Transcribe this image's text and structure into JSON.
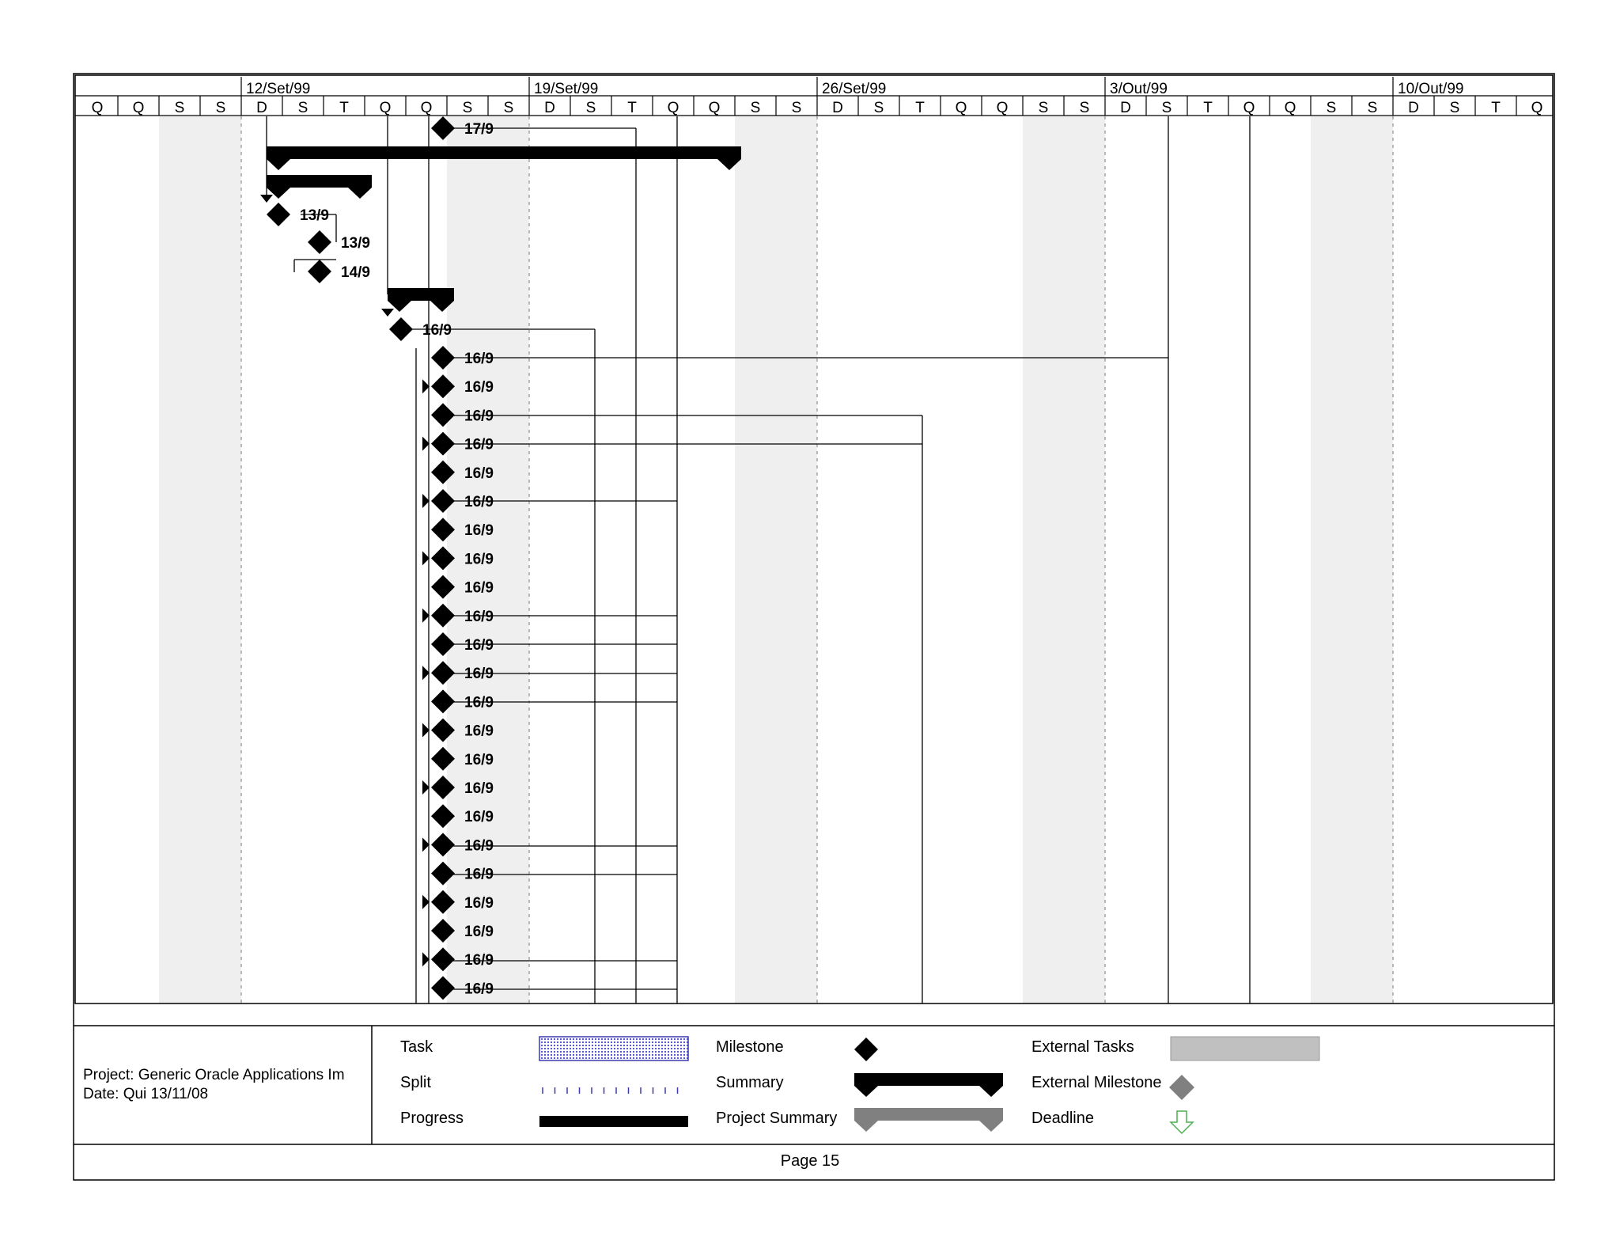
{
  "timescale": {
    "weeks": [
      "12/Set/99",
      "19/Set/99",
      "26/Set/99",
      "3/Out/99",
      "10/Out/99"
    ],
    "days": [
      "Q",
      "Q",
      "S",
      "S",
      "D",
      "S",
      "T",
      "Q",
      "Q",
      "S",
      "S",
      "D",
      "S",
      "T",
      "Q",
      "Q",
      "S",
      "S",
      "D",
      "S",
      "T",
      "Q",
      "Q",
      "S",
      "S",
      "D",
      "S",
      "T",
      "Q",
      "Q",
      "S",
      "S",
      "D",
      "S",
      "T",
      "Q"
    ]
  },
  "milestones": [
    {
      "date": "17/9"
    },
    {
      "date": "13/9"
    },
    {
      "date": "13/9"
    },
    {
      "date": "14/9"
    },
    {
      "date": "16/9"
    },
    {
      "date": "16/9"
    },
    {
      "date": "16/9"
    },
    {
      "date": "16/9"
    },
    {
      "date": "16/9"
    },
    {
      "date": "16/9"
    },
    {
      "date": "16/9"
    },
    {
      "date": "16/9"
    },
    {
      "date": "16/9"
    },
    {
      "date": "16/9"
    },
    {
      "date": "16/9"
    },
    {
      "date": "16/9"
    },
    {
      "date": "16/9"
    },
    {
      "date": "16/9"
    },
    {
      "date": "16/9"
    },
    {
      "date": "16/9"
    },
    {
      "date": "16/9"
    },
    {
      "date": "16/9"
    },
    {
      "date": "16/9"
    },
    {
      "date": "16/9"
    },
    {
      "date": "16/9"
    },
    {
      "date": "16/9"
    },
    {
      "date": "16/9"
    },
    {
      "date": "16/9"
    }
  ],
  "project_info": {
    "project_line": "Project: Generic Oracle Applications Im",
    "date_line": "Date: Qui 13/11/08"
  },
  "legend": {
    "task": "Task",
    "split": "Split",
    "progress": "Progress",
    "milestone": "Milestone",
    "summary": "Summary",
    "project_summary": "Project Summary",
    "external_tasks": "External Tasks",
    "external_milestone": "External Milestone",
    "deadline": "Deadline"
  },
  "footer": {
    "page": "Page 15"
  },
  "colors": {
    "weekend_shade": "#efefef",
    "task_fill": "#d8dcf5",
    "task_border": "#3a3ab4",
    "project_summary": "#808080",
    "external_task": "#c0c0c0",
    "external_milestone": "#808080",
    "deadline": "#4caf50"
  }
}
